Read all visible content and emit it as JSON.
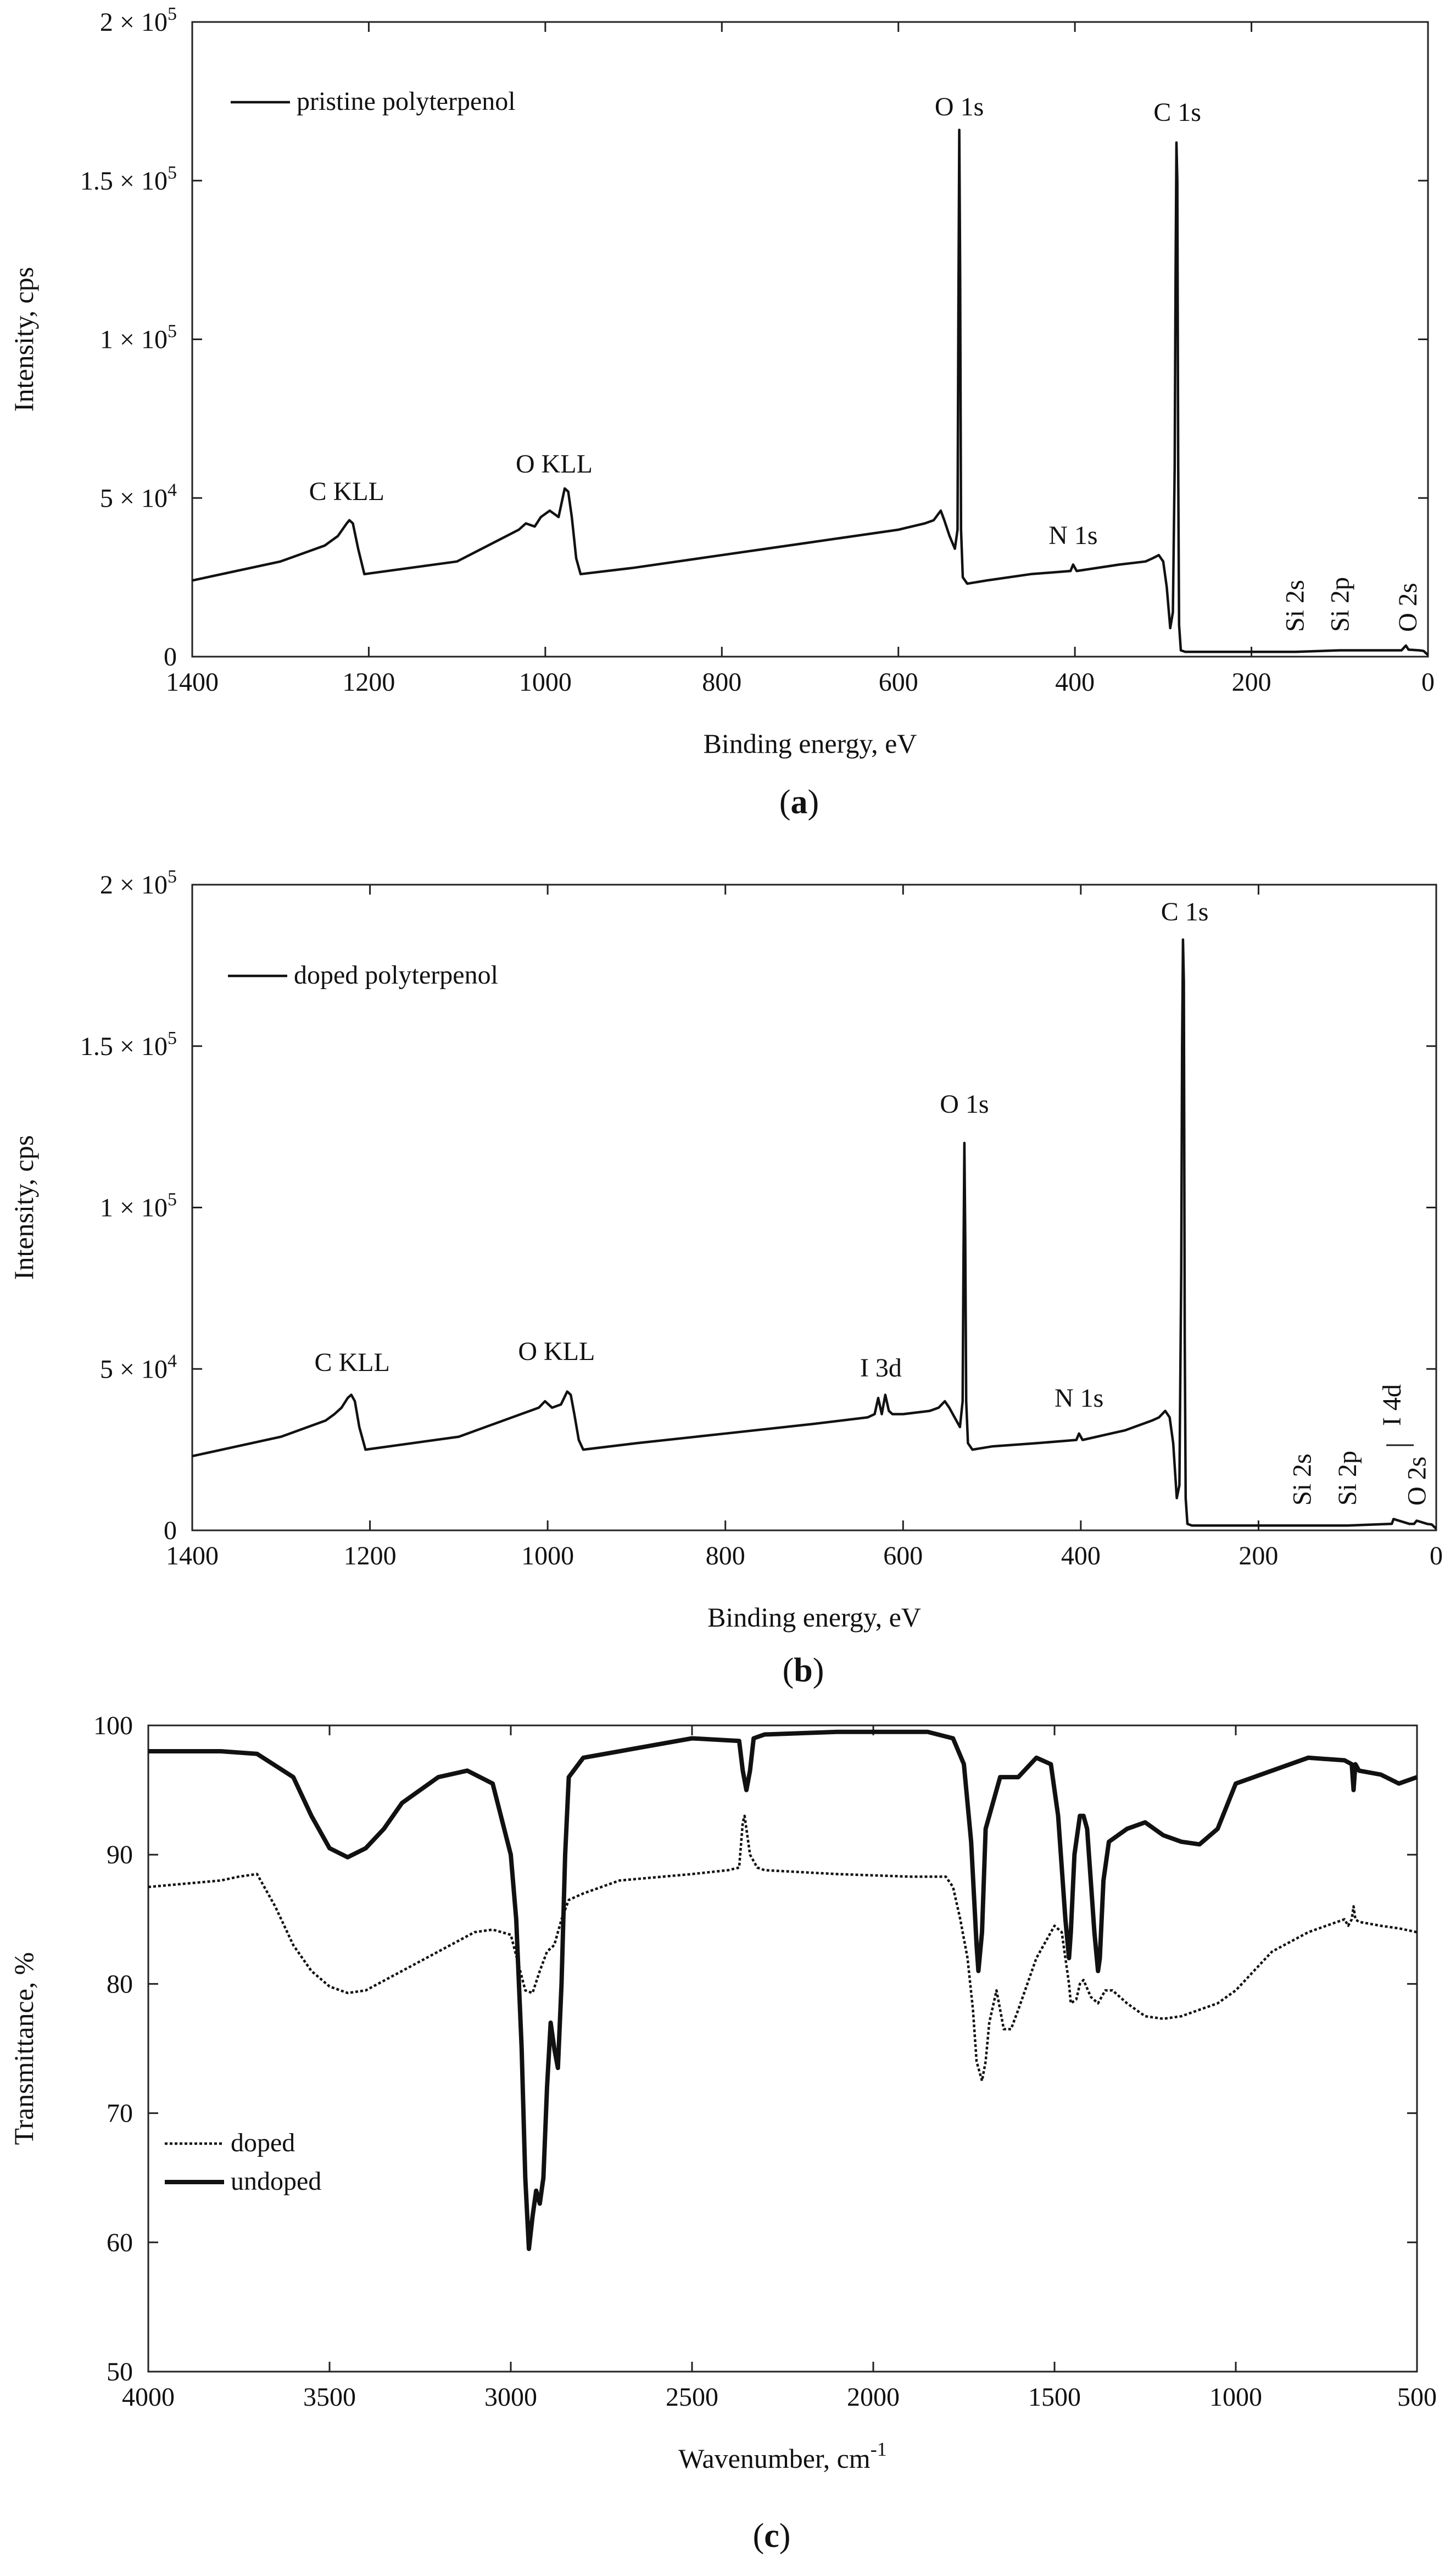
{
  "chart_data": [
    {
      "type": "line",
      "panel": "a",
      "caption": "a",
      "xlabel": "Binding energy, eV",
      "ylabel": "Intensity, cps",
      "xlim": [
        1400,
        0
      ],
      "ylim": [
        0,
        200000
      ],
      "xticks": [
        {
          "value": 1400,
          "label": "1400"
        },
        {
          "value": 1200,
          "label": "1200"
        },
        {
          "value": 1000,
          "label": "1000"
        },
        {
          "value": 800,
          "label": "800"
        },
        {
          "value": 600,
          "label": "600"
        },
        {
          "value": 400,
          "label": "400"
        },
        {
          "value": 200,
          "label": "200"
        },
        {
          "value": 0,
          "label": "0"
        }
      ],
      "yticks": [
        {
          "value": 0,
          "label": "0"
        },
        {
          "value": 50000,
          "label": "5 × 10",
          "sup": "4"
        },
        {
          "value": 100000,
          "label": "1 × 10",
          "sup": "5"
        },
        {
          "value": 150000,
          "label": "1.5 × 10",
          "sup": "5"
        },
        {
          "value": 200000,
          "label": "2 × 10",
          "sup": "5"
        }
      ],
      "legend": [
        {
          "label": "pristine polyterpenol",
          "style": "solid"
        }
      ],
      "series": [
        {
          "name": "pristine polyterpenol",
          "style": "solid",
          "x": [
            1400,
            1300,
            1250,
            1240,
            1235,
            1225,
            1222,
            1218,
            1212,
            1205,
            1100,
            1030,
            1022,
            1012,
            1005,
            995,
            985,
            978,
            974,
            970,
            965,
            960,
            900,
            800,
            700,
            600,
            570,
            560,
            552,
            548,
            542,
            536,
            533,
            532,
            531,
            530,
            529,
            527,
            522,
            500,
            450,
            405,
            402,
            398,
            350,
            320,
            312,
            305,
            300,
            296,
            292,
            289,
            287,
            286,
            285,
            284,
            283,
            282,
            280,
            275,
            250,
            200,
            150,
            100,
            30,
            25,
            22,
            10,
            5,
            0
          ],
          "y": [
            24000,
            30000,
            35000,
            37000,
            38000,
            42000,
            43000,
            42000,
            34000,
            26000,
            30000,
            40000,
            42000,
            41000,
            44000,
            46000,
            44000,
            53000,
            52000,
            44000,
            31000,
            26000,
            28000,
            32000,
            36000,
            40000,
            42000,
            43000,
            46000,
            43000,
            38000,
            34000,
            40000,
            110000,
            166000,
            120000,
            40000,
            25000,
            23000,
            24000,
            26000,
            27000,
            29000,
            27000,
            29000,
            30000,
            31000,
            32000,
            30000,
            22000,
            9000,
            14000,
            60000,
            120000,
            162000,
            150000,
            60000,
            10000,
            2000,
            1500,
            1500,
            1500,
            1500,
            2000,
            2000,
            3500,
            2200,
            2000,
            1800,
            500
          ]
        }
      ],
      "annotations": [
        {
          "text": "O 1s",
          "x": 531
        },
        {
          "text": "C 1s",
          "x": 284
        },
        {
          "text": "C KLL",
          "x": 1225
        },
        {
          "text": "O KLL",
          "x": 990
        },
        {
          "text": "N 1s",
          "x": 402
        },
        {
          "text": "Si 2s",
          "x": 151
        },
        {
          "text": "Si 2p",
          "x": 100
        },
        {
          "text": "O 2s",
          "x": 23
        }
      ]
    },
    {
      "type": "line",
      "panel": "b",
      "caption": "b",
      "xlabel": "Binding energy, eV",
      "ylabel": "Intensity, cps",
      "xlim": [
        1400,
        0
      ],
      "ylim": [
        0,
        200000
      ],
      "xticks": [
        {
          "value": 1400,
          "label": "1400"
        },
        {
          "value": 1200,
          "label": "1200"
        },
        {
          "value": 1000,
          "label": "1000"
        },
        {
          "value": 800,
          "label": "800"
        },
        {
          "value": 600,
          "label": "600"
        },
        {
          "value": 400,
          "label": "400"
        },
        {
          "value": 200,
          "label": "200"
        },
        {
          "value": 0,
          "label": "0"
        }
      ],
      "yticks": [
        {
          "value": 0,
          "label": "0"
        },
        {
          "value": 50000,
          "label": "5 × 10",
          "sup": "4"
        },
        {
          "value": 100000,
          "label": "1 × 10",
          "sup": "5"
        },
        {
          "value": 150000,
          "label": "1.5 × 10",
          "sup": "5"
        },
        {
          "value": 200000,
          "label": "2 × 10",
          "sup": "5"
        }
      ],
      "legend": [
        {
          "label": "doped polyterpenol",
          "style": "solid"
        }
      ],
      "series": [
        {
          "name": "doped polyterpenol",
          "style": "solid",
          "x": [
            1400,
            1300,
            1250,
            1240,
            1232,
            1225,
            1221,
            1217,
            1212,
            1205,
            1100,
            1030,
            1020,
            1010,
            1003,
            995,
            985,
            978,
            974,
            970,
            965,
            960,
            900,
            800,
            700,
            640,
            632,
            628,
            624,
            620,
            616,
            612,
            600,
            570,
            560,
            553,
            548,
            542,
            536,
            533,
            532,
            531,
            530,
            529,
            527,
            522,
            500,
            450,
            405,
            402,
            398,
            350,
            320,
            312,
            305,
            300,
            296,
            292,
            289,
            287,
            286,
            285,
            284,
            283,
            282,
            280,
            275,
            250,
            200,
            150,
            100,
            52,
            50,
            48,
            30,
            25,
            22,
            10,
            5,
            0
          ],
          "y": [
            23000,
            29000,
            34000,
            36000,
            38000,
            41000,
            42000,
            40000,
            32000,
            25000,
            29000,
            36000,
            37000,
            38000,
            40000,
            38000,
            39000,
            43000,
            42000,
            36000,
            28000,
            25000,
            27000,
            30000,
            33000,
            35000,
            36000,
            41000,
            36000,
            42000,
            37000,
            36000,
            36000,
            37000,
            38000,
            40000,
            38000,
            35000,
            32000,
            40000,
            85000,
            120000,
            90000,
            40000,
            27000,
            25000,
            26000,
            27000,
            28000,
            30000,
            28000,
            31000,
            34000,
            35000,
            37000,
            35000,
            27000,
            10000,
            14000,
            80000,
            150000,
            183000,
            170000,
            60000,
            10000,
            2000,
            1500,
            1500,
            1500,
            1500,
            1500,
            2000,
            2000,
            3500,
            2000,
            2000,
            3000,
            2000,
            1800,
            500
          ]
        }
      ],
      "annotations": [
        {
          "text": "C 1s",
          "x": 283
        },
        {
          "text": "O 1s",
          "x": 531
        },
        {
          "text": "C KLL",
          "x": 1220
        },
        {
          "text": "O KLL",
          "x": 990
        },
        {
          "text": "I 3d",
          "x": 625
        },
        {
          "text": "N 1s",
          "x": 402
        },
        {
          "text": "Si 2s",
          "x": 151
        },
        {
          "text": "Si 2p",
          "x": 100
        },
        {
          "text": "I 4d",
          "x": 50
        },
        {
          "text": "O 2s",
          "x": 22
        }
      ]
    },
    {
      "type": "line",
      "panel": "c",
      "caption": "c",
      "xlabel": "Wavenumber, cm",
      "xlabel_sup": "-1",
      "ylabel": "Transmittance, %",
      "xlim": [
        4000,
        500
      ],
      "ylim": [
        50,
        100
      ],
      "xticks": [
        {
          "value": 4000,
          "label": "4000"
        },
        {
          "value": 3500,
          "label": "3500"
        },
        {
          "value": 3000,
          "label": "3000"
        },
        {
          "value": 2500,
          "label": "2500"
        },
        {
          "value": 2000,
          "label": "2000"
        },
        {
          "value": 1500,
          "label": "1500"
        },
        {
          "value": 1000,
          "label": "1000"
        },
        {
          "value": 500,
          "label": "500"
        }
      ],
      "yticks": [
        {
          "value": 50,
          "label": "50"
        },
        {
          "value": 60,
          "label": "60"
        },
        {
          "value": 70,
          "label": "70"
        },
        {
          "value": 80,
          "label": "80"
        },
        {
          "value": 90,
          "label": "90"
        },
        {
          "value": 100,
          "label": "100"
        }
      ],
      "legend": [
        {
          "label": "doped",
          "style": "dotted"
        },
        {
          "label": "undoped",
          "style": "solid"
        }
      ],
      "series": [
        {
          "name": "undoped",
          "style": "solid",
          "x": [
            4000,
            3800,
            3700,
            3600,
            3550,
            3500,
            3450,
            3400,
            3350,
            3300,
            3200,
            3120,
            3050,
            3000,
            2985,
            2970,
            2960,
            2950,
            2940,
            2930,
            2920,
            2910,
            2900,
            2890,
            2880,
            2870,
            2860,
            2850,
            2840,
            2800,
            2700,
            2500,
            2370,
            2360,
            2350,
            2340,
            2330,
            2300,
            2100,
            1850,
            1780,
            1750,
            1730,
            1715,
            1710,
            1700,
            1690,
            1650,
            1600,
            1550,
            1510,
            1490,
            1470,
            1460,
            1455,
            1445,
            1430,
            1420,
            1410,
            1400,
            1390,
            1380,
            1375,
            1365,
            1350,
            1300,
            1250,
            1200,
            1150,
            1100,
            1050,
            1000,
            950,
            900,
            800,
            700,
            680,
            675,
            670,
            660,
            600,
            550,
            500
          ],
          "y": [
            98,
            98,
            97.8,
            96,
            93,
            90.5,
            89.8,
            90.5,
            92,
            94,
            96,
            96.5,
            95.5,
            90,
            85,
            75,
            65,
            59.5,
            62,
            64,
            63,
            65,
            72,
            77,
            75,
            73.5,
            80,
            90,
            96,
            97.5,
            98,
            99,
            98.8,
            96.5,
            95,
            96.5,
            99,
            99.3,
            99.5,
            99.5,
            99,
            97,
            91,
            83,
            81,
            84,
            92,
            96,
            96,
            97.5,
            97,
            93,
            85,
            82,
            84,
            90,
            93,
            93,
            92,
            88,
            84,
            81,
            82,
            88,
            91,
            92,
            92.5,
            91.5,
            91,
            90.8,
            92,
            95.5,
            96,
            96.5,
            97.5,
            97.3,
            97,
            95,
            97,
            96.5,
            96.2,
            95.5,
            96
          ]
        },
        {
          "name": "doped",
          "style": "dotted",
          "x": [
            4000,
            3800,
            3750,
            3700,
            3650,
            3600,
            3550,
            3500,
            3450,
            3400,
            3300,
            3200,
            3100,
            3050,
            3000,
            2960,
            2940,
            2920,
            2900,
            2880,
            2860,
            2840,
            2800,
            2700,
            2500,
            2400,
            2370,
            2360,
            2355,
            2350,
            2340,
            2320,
            2300,
            2100,
            1900,
            1800,
            1780,
            1760,
            1740,
            1725,
            1715,
            1700,
            1690,
            1680,
            1660,
            1640,
            1620,
            1600,
            1550,
            1500,
            1480,
            1460,
            1455,
            1440,
            1430,
            1420,
            1400,
            1380,
            1360,
            1340,
            1300,
            1250,
            1200,
            1150,
            1100,
            1050,
            1000,
            950,
            900,
            800,
            700,
            690,
            680,
            675,
            670,
            660,
            600,
            550,
            500
          ],
          "y": [
            87.5,
            88,
            88.3,
            88.5,
            86,
            83,
            81,
            79.8,
            79.3,
            79.5,
            81,
            82.5,
            84,
            84.2,
            83.8,
            79.5,
            79.3,
            81,
            82.5,
            83,
            85,
            86.5,
            87,
            88,
            88.5,
            88.8,
            89,
            92.5,
            93,
            92,
            90,
            89,
            88.8,
            88.5,
            88.3,
            88.3,
            87.5,
            85,
            82,
            78,
            74,
            72.5,
            74,
            77,
            79.5,
            76.5,
            76.5,
            78,
            82,
            84.5,
            84,
            80,
            78.5,
            78.8,
            80,
            80.3,
            79,
            78.5,
            79.5,
            79.5,
            78.5,
            77.5,
            77.3,
            77.5,
            78,
            78.5,
            79.5,
            81,
            82.5,
            84,
            85,
            84.5,
            85,
            86,
            85,
            84.8,
            84.5,
            84.3,
            84
          ]
        }
      ]
    }
  ]
}
